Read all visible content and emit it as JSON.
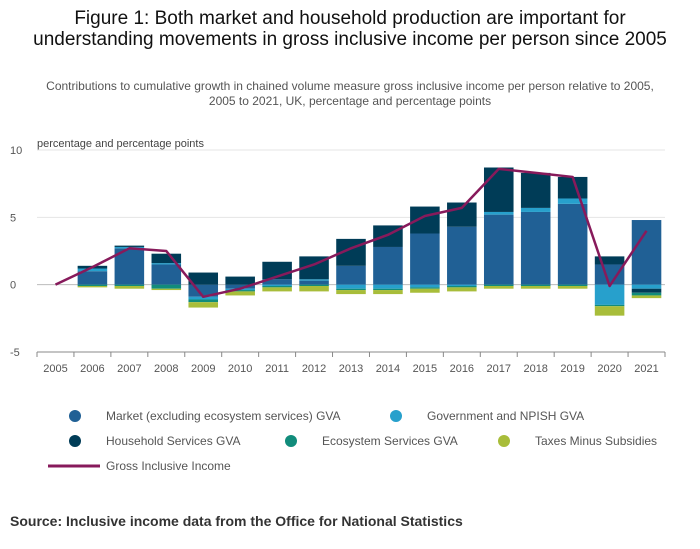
{
  "title": "Figure 1: Both market and household production are important for understanding movements in gross inclusive income per person since 2005",
  "subtitle": "Contributions to cumulative growth in chained volume measure gross inclusive income per person relative to 2005, 2005 to 2021, UK, percentage and percentage points",
  "source": "Source: Inclusive income data from the Office for National Statistics",
  "chart_data": {
    "type": "bar",
    "stacked": true,
    "ylabel": "percentage and percentage points",
    "ylim": [
      -5,
      10
    ],
    "yticks": [
      -5,
      0,
      5,
      10
    ],
    "grid": true,
    "legend_position": "bottom",
    "categories": [
      "2005",
      "2006",
      "2007",
      "2008",
      "2009",
      "2010",
      "2011",
      "2012",
      "2013",
      "2014",
      "2015",
      "2016",
      "2017",
      "2018",
      "2019",
      "2020",
      "2021"
    ],
    "series": [
      {
        "name": "Market (excluding ecosystem services) GVA",
        "color": "#206095",
        "values": [
          0,
          1.0,
          2.7,
          1.5,
          -0.9,
          -0.3,
          0.4,
          0.3,
          1.4,
          2.8,
          3.8,
          4.3,
          5.2,
          5.4,
          6.0,
          1.5,
          4.8
        ]
      },
      {
        "name": "Government and NPISH GVA",
        "color": "#27a0cc",
        "values": [
          0,
          0.2,
          0.1,
          0.1,
          -0.2,
          -0.1,
          -0.1,
          0.1,
          -0.3,
          -0.3,
          -0.2,
          -0.1,
          0.2,
          0.3,
          0.4,
          -1.5,
          -0.3
        ]
      },
      {
        "name": "Household Services GVA",
        "color": "#003c57",
        "values": [
          0,
          0.2,
          0.1,
          0.7,
          0.9,
          0.6,
          1.3,
          1.7,
          2.0,
          1.6,
          2.0,
          1.8,
          3.3,
          2.6,
          1.6,
          0.6,
          -0.3
        ]
      },
      {
        "name": "Ecosystem Services GVA",
        "color": "#118c7b",
        "values": [
          0,
          -0.1,
          -0.1,
          -0.3,
          -0.2,
          -0.1,
          -0.1,
          -0.1,
          -0.1,
          -0.1,
          -0.1,
          -0.1,
          -0.1,
          -0.1,
          -0.1,
          -0.1,
          -0.2
        ]
      },
      {
        "name": "Taxes Minus Subsidies",
        "color": "#a8bd3a",
        "values": [
          0,
          -0.1,
          -0.2,
          -0.1,
          -0.4,
          -0.3,
          -0.3,
          -0.4,
          -0.3,
          -0.3,
          -0.3,
          -0.3,
          -0.2,
          -0.2,
          -0.2,
          -0.7,
          -0.2
        ]
      }
    ],
    "line": {
      "name": "Gross Inclusive Income",
      "color": "#871a5b",
      "values": [
        0,
        1.3,
        2.7,
        2.5,
        -0.9,
        -0.3,
        0.6,
        1.5,
        2.7,
        3.7,
        5.1,
        5.7,
        8.6,
        8.3,
        8.0,
        -0.1,
        4.0
      ]
    }
  }
}
